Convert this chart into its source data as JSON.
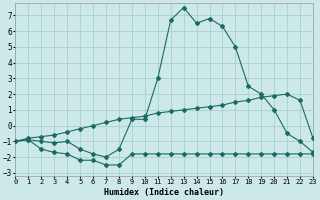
{
  "xlabel": "Humidex (Indice chaleur)",
  "bg_color": "#cce8e8",
  "grid_color": "#a8d0d0",
  "line_color": "#1a6b60",
  "xlim": [
    0,
    23
  ],
  "ylim": [
    -3.2,
    7.8
  ],
  "xticks": [
    0,
    1,
    2,
    3,
    4,
    5,
    6,
    7,
    8,
    9,
    10,
    11,
    12,
    13,
    14,
    15,
    16,
    17,
    18,
    19,
    20,
    21,
    22,
    23
  ],
  "yticks": [
    -3,
    -2,
    -1,
    0,
    1,
    2,
    3,
    4,
    5,
    6,
    7
  ],
  "line1_x": [
    0,
    1,
    2,
    3,
    4,
    5,
    6,
    7,
    8,
    9,
    10,
    11,
    12,
    13,
    14,
    15,
    16,
    17,
    18,
    19,
    20,
    21,
    22,
    23
  ],
  "line1_y": [
    -1.0,
    -0.9,
    -1.5,
    -1.7,
    -1.8,
    -2.2,
    -2.2,
    -2.5,
    -2.5,
    -1.8,
    -1.8,
    -1.8,
    -1.8,
    -1.8,
    -1.8,
    -1.8,
    -1.8,
    -1.8,
    -1.8,
    -1.8,
    -1.8,
    -1.8,
    -1.8,
    -1.8
  ],
  "line2_x": [
    0,
    1,
    2,
    3,
    4,
    5,
    6,
    7,
    8,
    9,
    10,
    11,
    12,
    13,
    14,
    15,
    16,
    17,
    18,
    19,
    20,
    21,
    22,
    23
  ],
  "line2_y": [
    -1.0,
    -0.8,
    -0.7,
    -0.6,
    -0.4,
    -0.2,
    0.0,
    0.2,
    0.4,
    0.5,
    0.6,
    0.8,
    0.9,
    1.0,
    1.1,
    1.2,
    1.3,
    1.5,
    1.6,
    1.8,
    1.9,
    2.0,
    1.6,
    -0.8
  ],
  "line3_x": [
    0,
    1,
    2,
    3,
    4,
    5,
    6,
    7,
    8,
    9,
    10,
    11,
    12,
    13,
    14,
    15,
    16,
    17,
    18,
    19,
    20,
    21,
    22,
    23
  ],
  "line3_y": [
    -1.0,
    -0.9,
    -1.0,
    -1.1,
    -1.0,
    -1.5,
    -1.8,
    -2.0,
    -1.5,
    0.4,
    0.4,
    3.0,
    6.7,
    7.5,
    6.5,
    6.8,
    6.3,
    5.0,
    2.5,
    2.0,
    1.0,
    -0.5,
    -1.0,
    -1.7
  ]
}
